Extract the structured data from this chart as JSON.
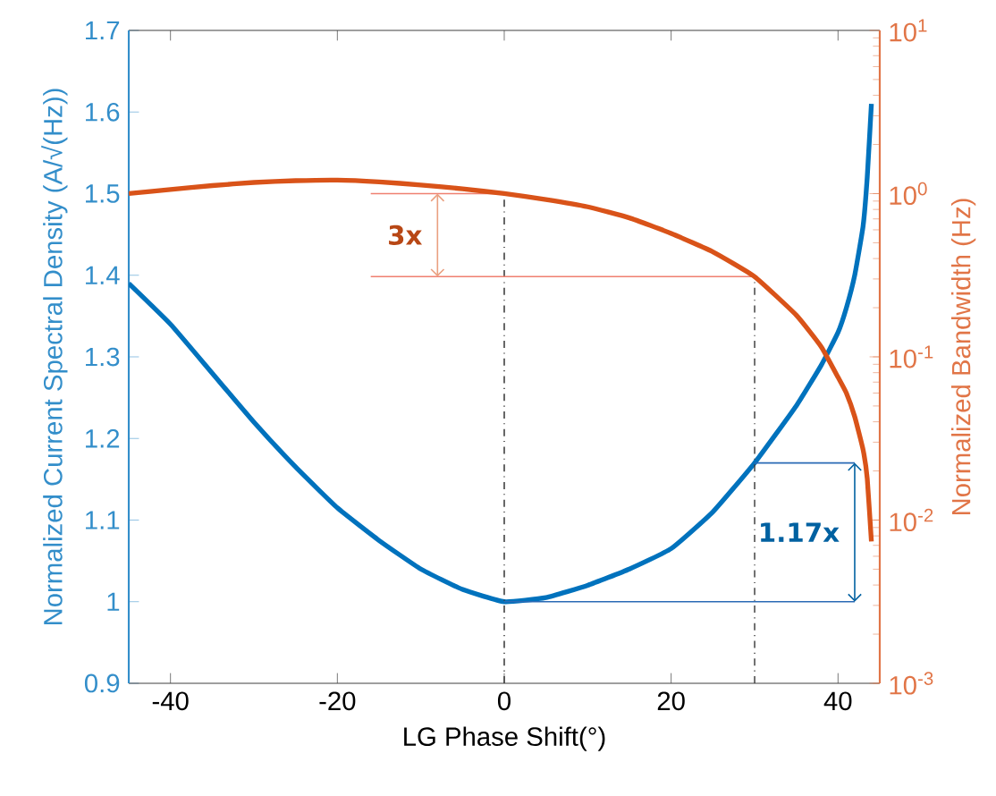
{
  "chart_data": {
    "type": "line",
    "xlabel": "LG Phase Shift(°)",
    "ylabel": "Normalized Current Spectral Density (A/√(Hz))",
    "y2label": "Normalized Bandwidth (Hz)",
    "xlim": [
      -45,
      45
    ],
    "xticks": [
      -40,
      -20,
      0,
      20,
      40
    ],
    "ylim": [
      0.9,
      1.7
    ],
    "yticks": [
      0.9,
      1,
      1.1,
      1.2,
      1.3,
      1.4,
      1.5,
      1.6,
      1.7
    ],
    "log": "y2",
    "y2lim": [
      0.001,
      10
    ],
    "y2ticks": [
      {
        "value": 0.001,
        "label": "10$^{-3}$"
      },
      {
        "value": 0.01,
        "label": "10$^{-2}$"
      },
      {
        "value": 0.1,
        "label": "10$^{-1}$"
      },
      {
        "value": 1,
        "label": "10$^{0}$"
      },
      {
        "value": 10,
        "label": "10$^{1}$"
      }
    ],
    "grid": false,
    "marker": "none",
    "line_style": "solid",
    "series": [
      {
        "color": "#d95319",
        "axis": "y2",
        "x": [
          -45,
          -40,
          -35,
          -30,
          -25,
          -20,
          -15,
          -10,
          -5,
          0,
          5,
          10,
          15,
          20,
          25,
          30,
          35,
          38,
          40,
          41,
          42,
          43,
          43.5,
          44
        ],
        "values": [
          1.0,
          1.06,
          1.12,
          1.17,
          1.2,
          1.21,
          1.18,
          1.13,
          1.07,
          1.0,
          0.92,
          0.83,
          0.71,
          0.57,
          0.44,
          0.31,
          0.18,
          0.115,
          0.075,
          0.06,
          0.043,
          0.027,
          0.018,
          0.0074
        ]
      },
      {
        "color": "#0072bd",
        "axis": "y",
        "x": [
          -45,
          -40,
          -35,
          -30,
          -25,
          -20,
          -15,
          -10,
          -5,
          0,
          5,
          10,
          15,
          20,
          25,
          30,
          35,
          38,
          40,
          41,
          42,
          43,
          43.5,
          44
        ],
        "values": [
          1.39,
          1.34,
          1.28,
          1.22,
          1.165,
          1.115,
          1.075,
          1.04,
          1.015,
          1.0,
          1.005,
          1.02,
          1.04,
          1.065,
          1.11,
          1.17,
          1.24,
          1.29,
          1.33,
          1.36,
          1.4,
          1.46,
          1.52,
          1.61
        ]
      }
    ],
    "ref_lines": [
      {
        "axis": "x",
        "value": 0,
        "color": "#404040",
        "line_style": "dashdot"
      },
      {
        "axis": "x",
        "value": 30,
        "color": "#404040",
        "line_style": "dashdot"
      },
      {
        "axis": "y2",
        "value": 1.0,
        "color": "#f08070",
        "line_style": "solid"
      },
      {
        "axis": "y2",
        "value": 0.31,
        "color": "#f08070",
        "line_style": "solid"
      },
      {
        "axis": "y",
        "value": 1.0,
        "color": "#2a6ab5",
        "line_style": "solid"
      },
      {
        "axis": "y",
        "value": 1.17,
        "color": "#2a6ab5",
        "line_style": "solid"
      }
    ],
    "annotations": [
      "3x",
      {
        "text": "1.17x",
        "x": 30,
        "y": 1.17
      }
    ]
  }
}
